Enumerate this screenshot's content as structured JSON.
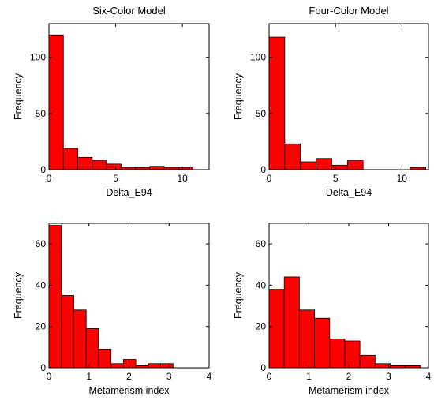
{
  "colors": {
    "bar_fill": "#ff0000",
    "bar_edge": "#000000",
    "axes": "#000000",
    "background": "#ffffff"
  },
  "chart_data": [
    {
      "type": "bar",
      "title": "Six-Color Model",
      "xlabel": "Delta_E94",
      "ylabel": "Frequency",
      "xlim": [
        0,
        12
      ],
      "ylim": [
        0,
        130
      ],
      "xticks": [
        0,
        5,
        10
      ],
      "yticks": [
        0,
        50,
        100
      ],
      "bin_edges": [
        0,
        1.08,
        2.16,
        3.24,
        4.32,
        5.4,
        6.48,
        7.56,
        8.64,
        9.72,
        10.8
      ],
      "values": [
        120,
        19,
        11,
        8,
        5,
        2,
        2,
        3,
        2,
        2
      ],
      "grid": false
    },
    {
      "type": "bar",
      "title": "Four-Color Model",
      "xlabel": "Delta_E94",
      "ylabel": "Frequency",
      "xlim": [
        0,
        12
      ],
      "ylim": [
        0,
        130
      ],
      "xticks": [
        0,
        5,
        10
      ],
      "yticks": [
        0,
        50,
        100
      ],
      "bin_edges": [
        0,
        1.18,
        2.36,
        3.54,
        4.72,
        5.9,
        7.08,
        8.26,
        9.44,
        10.62,
        11.8
      ],
      "values": [
        118,
        23,
        7,
        10,
        4,
        8,
        0,
        0,
        0,
        2
      ],
      "grid": false
    },
    {
      "type": "bar",
      "title": "",
      "xlabel": "Metamerism index",
      "ylabel": "Frequency",
      "xlim": [
        0,
        4
      ],
      "ylim": [
        0,
        70
      ],
      "xticks": [
        0,
        1,
        2,
        3,
        4
      ],
      "yticks": [
        0,
        20,
        40,
        60
      ],
      "bin_edges": [
        0,
        0.31,
        0.62,
        0.93,
        1.24,
        1.55,
        1.86,
        2.17,
        2.48,
        2.79,
        3.1
      ],
      "values": [
        69,
        35,
        28,
        19,
        9,
        2,
        4,
        1,
        2,
        2
      ],
      "grid": false
    },
    {
      "type": "bar",
      "title": "",
      "xlabel": "Metamerism index",
      "ylabel": "Frequency",
      "xlim": [
        0,
        4
      ],
      "ylim": [
        0,
        70
      ],
      "xticks": [
        0,
        1,
        2,
        3,
        4
      ],
      "yticks": [
        0,
        20,
        40,
        60
      ],
      "bin_edges": [
        0,
        0.38,
        0.76,
        1.14,
        1.52,
        1.9,
        2.28,
        2.66,
        3.04,
        3.42,
        3.8
      ],
      "values": [
        38,
        44,
        28,
        24,
        14,
        13,
        6,
        2,
        1,
        1
      ],
      "grid": false
    }
  ]
}
